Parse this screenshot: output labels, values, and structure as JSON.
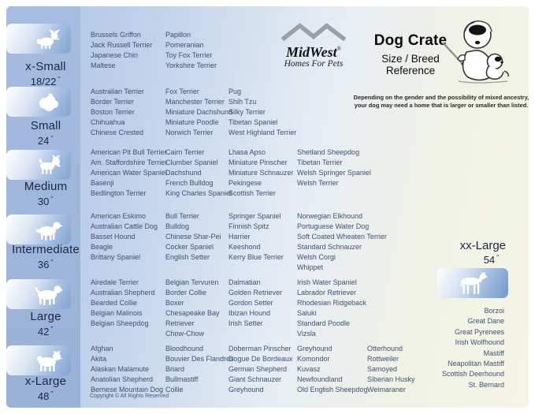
{
  "header": {
    "brand": {
      "name": "MidWest",
      "registered": "®",
      "tagline": "Homes For Pets",
      "logo_icon": "mountain-zigzag-logo"
    },
    "title": "Dog Crate",
    "subtitle_line1": "Size / Breed",
    "subtitle_line2": "Reference",
    "mascot_icon": "sheepdog-measuring-puppy-illustration",
    "disclaimer_line1": "Depending on the gender and the possibility of mixed ancestry,",
    "disclaimer_line2": "your dog may need a home that is larger or smaller than listed."
  },
  "marks": {
    "inch": "″"
  },
  "colors": {
    "sidebar_blue": "#9db4d9",
    "icon_box_blue": "#7fa3d4",
    "breed_text": "#3d5270",
    "label_navy": "#1a2742",
    "background_left": "#aac3e4",
    "background_right": "#f4f5e4"
  },
  "sizes": [
    {
      "label": "x-Small",
      "dimension": "18/22",
      "icon": "toy-dog-papillon-silhouette",
      "columns": [
        [
          "Brussels Griffon",
          "Jack Russell Terrier",
          "Japanese Chin",
          "Maltese"
        ],
        [
          "Papillon",
          "Pomeranian",
          "Toy Fox Terrier",
          "Yorkshire Terrier"
        ]
      ]
    },
    {
      "label": "Small",
      "dimension": "24",
      "icon": "shih-tzu-silhouette",
      "columns": [
        [
          "Australian Terrier",
          "Border Terrier",
          "Boston Terrier",
          "Chihuahua",
          "Chinese Crested"
        ],
        [
          "Fox Terrier",
          "Manchester Terrier",
          "Miniature Dachshund",
          "Miniature Poodle",
          "Norwich Terrier"
        ],
        [
          "Pug",
          "Shih Tzu",
          "Silky Terrier",
          "Tibetan Spaniel",
          "West Highland Terrier"
        ]
      ]
    },
    {
      "label": "Medium",
      "dimension": "30",
      "icon": "terrier-silhouette",
      "columns": [
        [
          "American Pit Bull Terrier",
          "Am. Staffordshire Terrier",
          "American Water Spaniel",
          "Basenji",
          "Bedlington Terrier"
        ],
        [
          "Cairn Terrier",
          "Clumber Spaniel",
          "Dachshund",
          "French Bulldog",
          "King Charles Spaniel"
        ],
        [
          "Lhasa Apso",
          "Miniature Pinscher",
          "Miniature Schnauzer",
          "Pekingese",
          "Scottish Terrier"
        ],
        [
          "Shetland Sheepdog",
          "Tibetan Terrier",
          "Welsh Springer Spaniel",
          "Welsh Terrier"
        ]
      ]
    },
    {
      "label": "Intermediate",
      "dimension": "36",
      "icon": "spaniel-silhouette",
      "columns": [
        [
          "American Eskimo",
          "Australian Cattle Dog",
          "Basset Hound",
          "Beagle",
          "Brittany Spaniel"
        ],
        [
          "Bull Terrier",
          "Bulldog",
          "Chinese Shar-Pei",
          "Cocker Spaniel",
          "English Setter"
        ],
        [
          "Springer Spaniel",
          "Finnish Spitz",
          "Harrier",
          "Keeshond",
          "Kerry Blue Terrier"
        ],
        [
          "Norwegian Elkhound",
          "Portuguese Water Dog",
          "Soft Coated Wheaten Terrier",
          "Standard Schnauzer",
          "Welsh Corgi",
          "Whippet"
        ]
      ]
    },
    {
      "label": "Large",
      "dimension": "42",
      "icon": "retriever-silhouette",
      "columns": [
        [
          "Airedale Terrier",
          "Australian Shepherd",
          "Bearded Collie",
          "Belgian Malinois",
          "Belgian Sheepdog"
        ],
        [
          "Belgian Tervuren",
          "Border Collie",
          "Boxer",
          "Chesapeake Bay Retriever",
          "Chow-Chow"
        ],
        [
          "Dalmatian",
          "Golden Retriever",
          "Gordon Setter",
          "Ibizan Hound",
          "Irish Setter"
        ],
        [
          "Irish Water Spaniel",
          "Labrador Retriever",
          "Rhodesian Ridgeback",
          "Saluki",
          "Standard Poodle",
          "Vizsla"
        ]
      ]
    },
    {
      "label": "x-Large",
      "dimension": "48",
      "icon": "akita-silhouette",
      "columns": [
        [
          "Afghan",
          "Akita",
          "Alaskan Malamute",
          "Anatolian Shepherd",
          "Bernese Mountain Dog"
        ],
        [
          "Bloodhound",
          "Bouvier Des Flandres",
          "Briard",
          "Bullmastiff",
          "Collie"
        ],
        [
          "Doberman Pinscher",
          "Dogue De Bordeaux",
          "German Shepherd",
          "Giant Schnauzer",
          "Greyhound"
        ],
        [
          "Greyhound",
          "Komondor",
          "Kuvasz",
          "Newfoundland",
          "Old English Sheepdog"
        ],
        [
          "Otterhound",
          "Rottweiler",
          "Samoyed",
          "Siberian Husky",
          "Weimaraner"
        ]
      ]
    }
  ],
  "xx_large": {
    "label": "xx-Large",
    "dimension": "54",
    "icon": "great-dane-silhouette",
    "breeds": [
      "Borzoi",
      "Great Dane",
      "Great Pyrenees",
      "Irish Wolfhound",
      "Mastiff",
      "Neapolitan Mastiff",
      "Scottish Deerhound",
      "St. Bernard"
    ]
  },
  "footer": {
    "copyright": "Copyright © All Rights Reserved"
  }
}
